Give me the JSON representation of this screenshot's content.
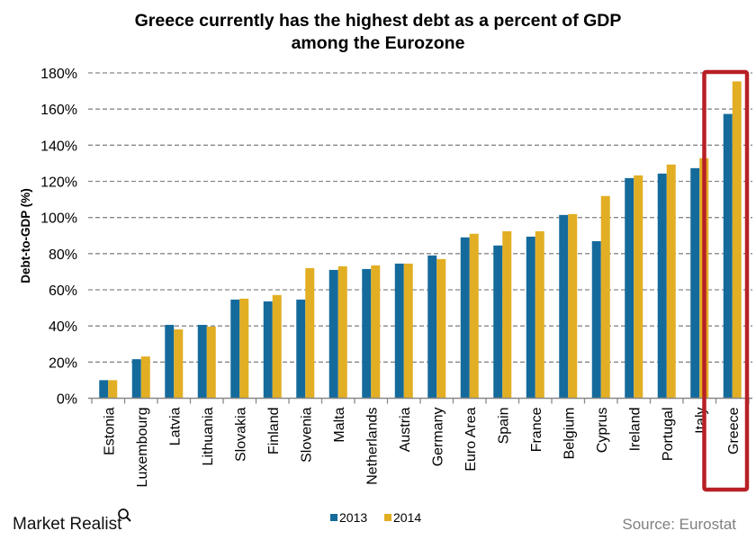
{
  "chart_data": {
    "type": "bar",
    "title": [
      "Greece currently has the highest debt as a percent of GDP",
      "among the Eurozone"
    ],
    "xlabel": "",
    "ylabel": "Debt-to-GDP (%)",
    "ylim": [
      0,
      180
    ],
    "yticks": [
      "0%",
      "20%",
      "40%",
      "60%",
      "80%",
      "100%",
      "120%",
      "140%",
      "160%",
      "180%"
    ],
    "grid": true,
    "legend_position": "bottom",
    "categories": [
      "Estonia",
      "Luxembourg",
      "Latvia",
      "Lithuania",
      "Slovakia",
      "Finland",
      "Slovenia",
      "Malta",
      "Netherlands",
      "Austria",
      "Germany",
      "Euro Area",
      "Spain",
      "France",
      "Belgium",
      "Cyprus",
      "Ireland",
      "Portugal",
      "Italy",
      "Greece"
    ],
    "series": [
      {
        "name": "2013",
        "color": "#156A9C",
        "values": [
          10,
          21.6,
          40.6,
          40.6,
          54.6,
          53.6,
          54.6,
          71,
          71.5,
          74.5,
          79,
          89,
          84.5,
          89.4,
          101.4,
          86.9,
          121.8,
          124.3,
          127.3,
          157.3
        ]
      },
      {
        "name": "2014",
        "color": "#E2AE23",
        "values": [
          10,
          23.1,
          38.1,
          39.6,
          55.1,
          57.1,
          72,
          73,
          73.5,
          74.5,
          77,
          91,
          92.4,
          92.4,
          101.9,
          111.9,
          123.3,
          129.3,
          132.8,
          175.3
        ]
      }
    ],
    "highlight": {
      "category": "Greece",
      "color": "#B82025"
    }
  },
  "footer": {
    "brand": "Market Realist",
    "source": "Source: Eurostat"
  }
}
